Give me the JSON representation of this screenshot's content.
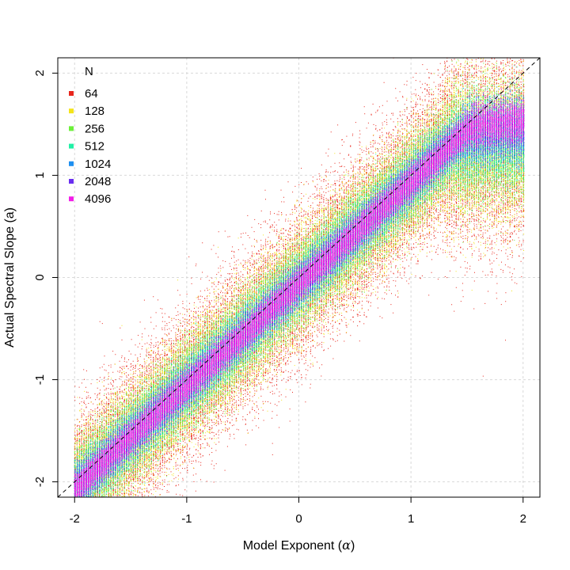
{
  "chart_data": {
    "type": "scatter",
    "title": "",
    "xlabel": "Model Exponent (",
    "xlabel_symbol": "α",
    "xlabel_suffix": ")",
    "ylabel": "Actual Spectral Slope (a)",
    "xlim": [
      -2.15,
      2.15
    ],
    "ylim": [
      -2.15,
      2.15
    ],
    "x_ticks": [
      -2,
      -1,
      0,
      1,
      2
    ],
    "y_ticks": [
      -2,
      -1,
      0,
      1,
      2
    ],
    "x_tick_labels": [
      "-2",
      "-1",
      "0",
      "1",
      "2"
    ],
    "y_tick_labels": [
      "-2",
      "-1",
      "0",
      "1",
      "2"
    ],
    "grid": true,
    "reference_line": {
      "type": "y=x",
      "style": "dashed",
      "color": "#000000"
    },
    "legend": {
      "title": "N",
      "position": "top-left",
      "entries": [
        "64",
        "128",
        "256",
        "512",
        "1024",
        "2048",
        "4096"
      ]
    },
    "series": [
      {
        "name": "64",
        "color": "#e8261c",
        "spread": 0.36,
        "points_per_column": 150,
        "x_range": [
          -2,
          2
        ],
        "saturation_start": 1.3,
        "saturation_level": 1.15
      },
      {
        "name": "128",
        "color": "#f4e41a",
        "spread": 0.27,
        "points_per_column": 140,
        "x_range": [
          -2,
          2
        ],
        "saturation_start": 1.3,
        "saturation_level": 1.15
      },
      {
        "name": "256",
        "color": "#6cf03a",
        "spread": 0.2,
        "points_per_column": 130,
        "x_range": [
          -2,
          2
        ],
        "saturation_start": 1.35,
        "saturation_level": 1.2
      },
      {
        "name": "512",
        "color": "#21f0a6",
        "spread": 0.15,
        "points_per_column": 120,
        "x_range": [
          -2,
          2
        ],
        "saturation_start": 1.4,
        "saturation_level": 1.25
      },
      {
        "name": "1024",
        "color": "#1e8ff0",
        "spread": 0.11,
        "points_per_column": 110,
        "x_range": [
          -2,
          2
        ],
        "saturation_start": 1.45,
        "saturation_level": 1.3
      },
      {
        "name": "2048",
        "color": "#6a2ef0",
        "spread": 0.085,
        "points_per_column": 100,
        "x_range": [
          -2,
          2
        ],
        "saturation_start": 1.5,
        "saturation_level": 1.35
      },
      {
        "name": "4096",
        "color": "#f21ee8",
        "spread": 0.07,
        "points_per_column": 100,
        "x_range": [
          -2,
          2
        ],
        "saturation_start": 1.55,
        "saturation_level": 1.4
      }
    ],
    "x_step": 0.02,
    "offset_below_diagonal": 0.12
  }
}
